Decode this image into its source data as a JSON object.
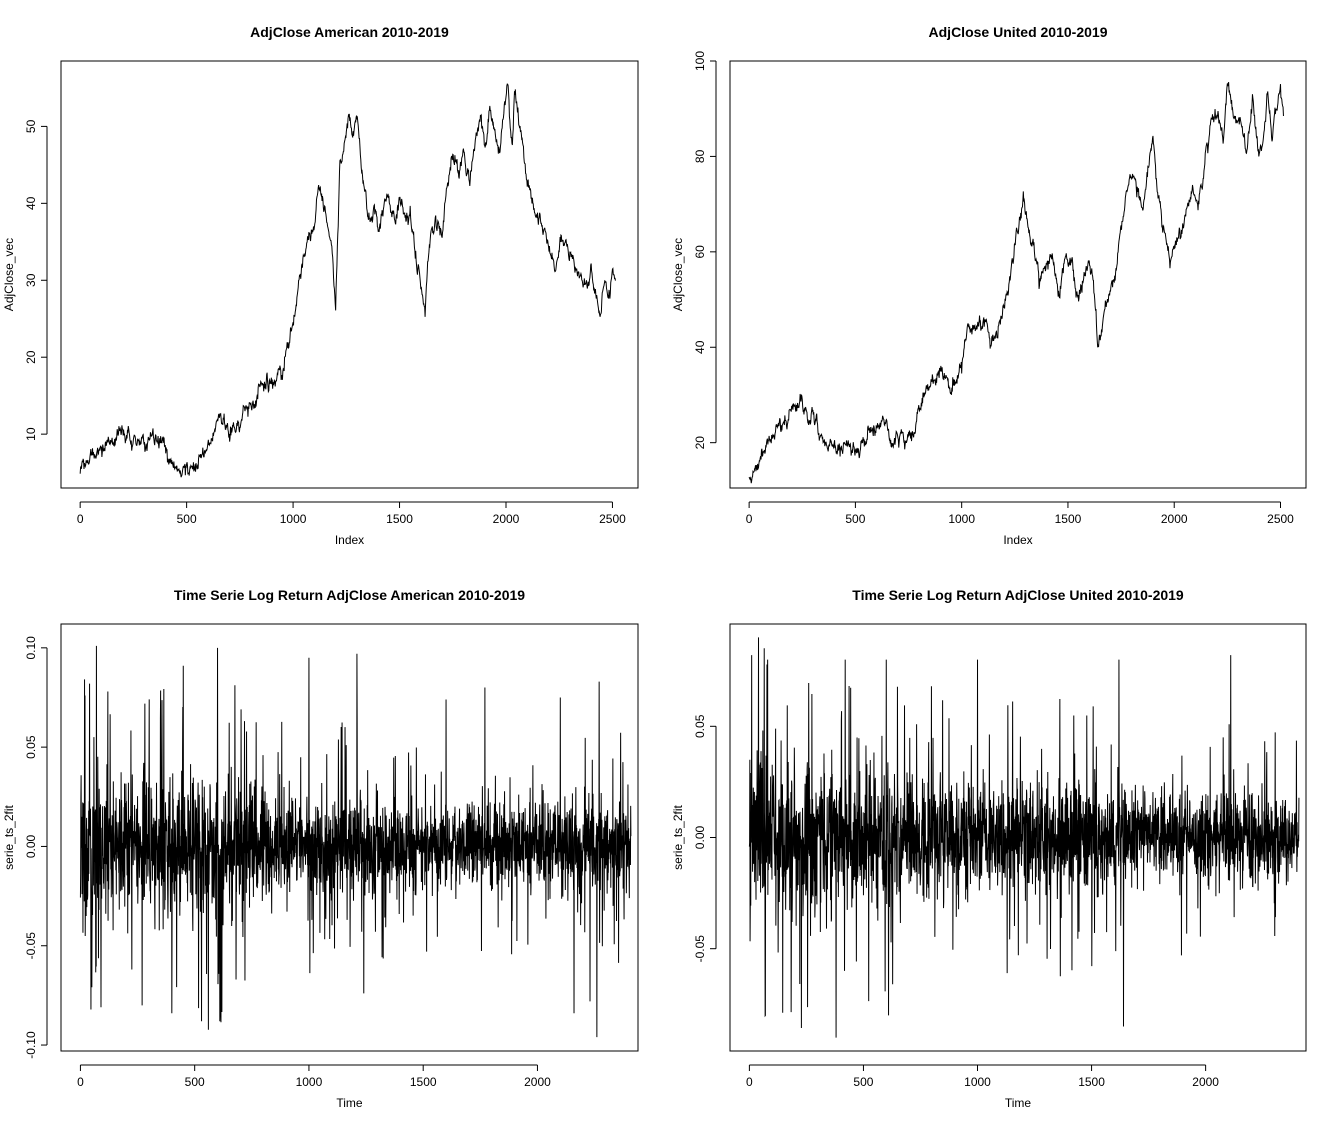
{
  "chart_data": [
    {
      "type": "line",
      "title": "AdjClose American 2010-2019",
      "xlabel": "Index",
      "ylabel": "AdjClose_vec",
      "xlim": [
        -90,
        2620
      ],
      "ylim": [
        3.0,
        58.5
      ],
      "x_ticks": [
        0,
        500,
        1000,
        1500,
        2000,
        2500
      ],
      "y_ticks": [
        10,
        20,
        30,
        40,
        50
      ],
      "x_tick_labels": [
        "0",
        "500",
        "1000",
        "1500",
        "2000",
        "2500"
      ],
      "y_tick_labels": [
        "10",
        "20",
        "30",
        "40",
        "50"
      ],
      "n_points": 2516,
      "x": [
        0,
        60,
        120,
        200,
        260,
        320,
        380,
        420,
        470,
        500,
        550,
        600,
        650,
        700,
        750,
        800,
        850,
        900,
        950,
        1000,
        1020,
        1050,
        1080,
        1100,
        1120,
        1150,
        1180,
        1200,
        1220,
        1240,
        1260,
        1280,
        1300,
        1320,
        1340,
        1360,
        1380,
        1400,
        1440,
        1480,
        1500,
        1530,
        1550,
        1580,
        1600,
        1620,
        1640,
        1670,
        1700,
        1720,
        1750,
        1780,
        1800,
        1830,
        1850,
        1880,
        1900,
        1920,
        1950,
        1970,
        2000,
        2010,
        2020,
        2030,
        2040,
        2060,
        2080,
        2100,
        2120,
        2140,
        2160,
        2180,
        2200,
        2230,
        2260,
        2300,
        2340,
        2380,
        2400,
        2420,
        2440,
        2460,
        2480,
        2500,
        2516
      ],
      "values": [
        5.0,
        7.2,
        8.5,
        11.0,
        9.5,
        8.5,
        9.0,
        6.5,
        5.5,
        4.5,
        6.5,
        8.5,
        13.0,
        10.0,
        12.0,
        13.5,
        17.0,
        16.0,
        19.0,
        23.0,
        28.0,
        34.0,
        35.0,
        37.0,
        41.5,
        39.0,
        35.0,
        27.5,
        45.0,
        48.0,
        52.0,
        47.5,
        50.5,
        45.0,
        42.0,
        38.0,
        40.0,
        37.0,
        42.0,
        38.0,
        41.0,
        38.0,
        40.0,
        34.0,
        30.0,
        24.5,
        34.0,
        38.0,
        36.0,
        42.0,
        47.5,
        44.0,
        47.0,
        43.0,
        48.0,
        51.0,
        47.0,
        52.0,
        50.0,
        47.0,
        53.5,
        56.5,
        50.0,
        48.0,
        54.5,
        51.0,
        48.0,
        43.0,
        41.0,
        37.5,
        39.0,
        36.0,
        34.0,
        31.0,
        36.0,
        34.0,
        31.0,
        28.5,
        31.0,
        28.0,
        25.0,
        29.0,
        27.5,
        30.0,
        29.0
      ],
      "line_color": "#000000"
    },
    {
      "type": "line",
      "title": "AdjClose United 2010-2019",
      "xlabel": "Index",
      "ylabel": "AdjClose_vec",
      "xlim": [
        -90,
        2620
      ],
      "ylim": [
        10.5,
        100
      ],
      "x_ticks": [
        0,
        500,
        1000,
        1500,
        2000,
        2500
      ],
      "y_ticks": [
        20,
        40,
        60,
        80,
        100
      ],
      "x_tick_labels": [
        "0",
        "500",
        "1000",
        "1500",
        "2000",
        "2500"
      ],
      "y_tick_labels": [
        "20",
        "40",
        "60",
        "80",
        "100"
      ],
      "n_points": 2516,
      "x": [
        0,
        40,
        80,
        120,
        160,
        200,
        240,
        280,
        320,
        360,
        400,
        450,
        500,
        550,
        600,
        640,
        680,
        720,
        760,
        800,
        850,
        900,
        950,
        1000,
        1030,
        1060,
        1100,
        1150,
        1200,
        1240,
        1270,
        1290,
        1310,
        1340,
        1370,
        1400,
        1430,
        1460,
        1490,
        1520,
        1550,
        1580,
        1600,
        1620,
        1640,
        1660,
        1700,
        1740,
        1780,
        1820,
        1850,
        1880,
        1900,
        1920,
        1950,
        1980,
        2010,
        2040,
        2080,
        2110,
        2140,
        2170,
        2200,
        2230,
        2250,
        2280,
        2310,
        2340,
        2370,
        2400,
        2420,
        2440,
        2460,
        2480,
        2500,
        2516
      ],
      "values": [
        13.0,
        15.0,
        20.0,
        22.0,
        24.0,
        27.0,
        29.0,
        26.0,
        25.0,
        22.0,
        18.0,
        20.0,
        18.0,
        21.0,
        24.0,
        24.5,
        19.0,
        20.5,
        21.0,
        26.0,
        32.0,
        35.0,
        30.0,
        38.0,
        46.0,
        45.0,
        44.0,
        42.0,
        48.0,
        58.0,
        66.0,
        72.0,
        64.0,
        60.0,
        55.0,
        58.0,
        60.0,
        52.0,
        59.0,
        57.0,
        48.0,
        55.0,
        58.0,
        52.0,
        40.0,
        44.0,
        52.0,
        60.0,
        72.0,
        74.0,
        70.0,
        78.0,
        82.0,
        74.0,
        65.0,
        58.0,
        62.0,
        66.0,
        72.0,
        70.0,
        78.0,
        88.0,
        90.0,
        84.0,
        96.0,
        86.0,
        88.0,
        82.0,
        90.0,
        80.0,
        86.0,
        95.0,
        84.0,
        90.0,
        94.0,
        88.0
      ],
      "line_color": "#000000"
    },
    {
      "type": "line",
      "title": "Time Serie Log Return AdjClose American 2010-2019",
      "xlabel": "Time",
      "ylabel": "serie_ts_2fit",
      "xlim": [
        -85,
        2440
      ],
      "ylim": [
        -0.103,
        0.112
      ],
      "x_ticks": [
        0,
        500,
        1000,
        1500,
        2000
      ],
      "y_ticks": [
        -0.1,
        -0.05,
        0.0,
        0.05,
        0.1
      ],
      "x_tick_labels": [
        "0",
        "500",
        "1000",
        "1500",
        "2000"
      ],
      "y_tick_labels": [
        "-0.10",
        "-0.05",
        "0.00",
        "0.05",
        "0.10"
      ],
      "n_points": 2410,
      "spikes": [
        [
          20,
          0.076
        ],
        [
          40,
          0.082
        ],
        [
          70,
          0.101
        ],
        [
          90,
          -0.081
        ],
        [
          120,
          0.078
        ],
        [
          270,
          -0.08
        ],
        [
          400,
          -0.084
        ],
        [
          450,
          0.091
        ],
        [
          530,
          -0.088
        ],
        [
          600,
          0.1
        ],
        [
          610,
          -0.088
        ],
        [
          1000,
          0.095
        ],
        [
          1210,
          0.097
        ],
        [
          1240,
          -0.074
        ],
        [
          1600,
          0.074
        ],
        [
          1770,
          0.08
        ],
        [
          2100,
          0.075
        ],
        [
          2160,
          -0.084
        ],
        [
          2230,
          -0.078
        ],
        [
          2260,
          -0.096
        ],
        [
          2270,
          0.083
        ]
      ],
      "envelope": [
        [
          0,
          0.045
        ],
        [
          300,
          0.042
        ],
        [
          600,
          0.048
        ],
        [
          900,
          0.03
        ],
        [
          1200,
          0.032
        ],
        [
          1500,
          0.026
        ],
        [
          1800,
          0.025
        ],
        [
          2100,
          0.028
        ],
        [
          2410,
          0.03
        ]
      ],
      "line_color": "#000000"
    },
    {
      "type": "line",
      "title": "Time Serie Log Return AdjClose United 2010-2019",
      "xlabel": "Time",
      "ylabel": "serie_ts_2fit",
      "xlim": [
        -85,
        2440
      ],
      "ylim": [
        -0.096,
        0.096
      ],
      "x_ticks": [
        0,
        500,
        1000,
        1500,
        2000
      ],
      "y_ticks": [
        -0.05,
        0.0,
        0.05
      ],
      "x_tick_labels": [
        "0",
        "500",
        "1000",
        "1500",
        "2000"
      ],
      "y_tick_labels": [
        "-0.05",
        "0.00",
        "0.05"
      ],
      "n_points": 2410,
      "spikes": [
        [
          10,
          0.082
        ],
        [
          40,
          0.09
        ],
        [
          70,
          -0.08
        ],
        [
          80,
          0.08
        ],
        [
          380,
          -0.09
        ],
        [
          420,
          0.08
        ],
        [
          600,
          0.08
        ],
        [
          610,
          -0.08
        ],
        [
          1000,
          0.08
        ],
        [
          1620,
          0.08
        ],
        [
          1640,
          -0.085
        ],
        [
          2110,
          0.082
        ]
      ],
      "envelope": [
        [
          0,
          0.045
        ],
        [
          300,
          0.04
        ],
        [
          600,
          0.035
        ],
        [
          900,
          0.032
        ],
        [
          1200,
          0.03
        ],
        [
          1500,
          0.03
        ],
        [
          1800,
          0.026
        ],
        [
          2100,
          0.025
        ],
        [
          2410,
          0.025
        ]
      ],
      "line_color": "#000000"
    }
  ]
}
